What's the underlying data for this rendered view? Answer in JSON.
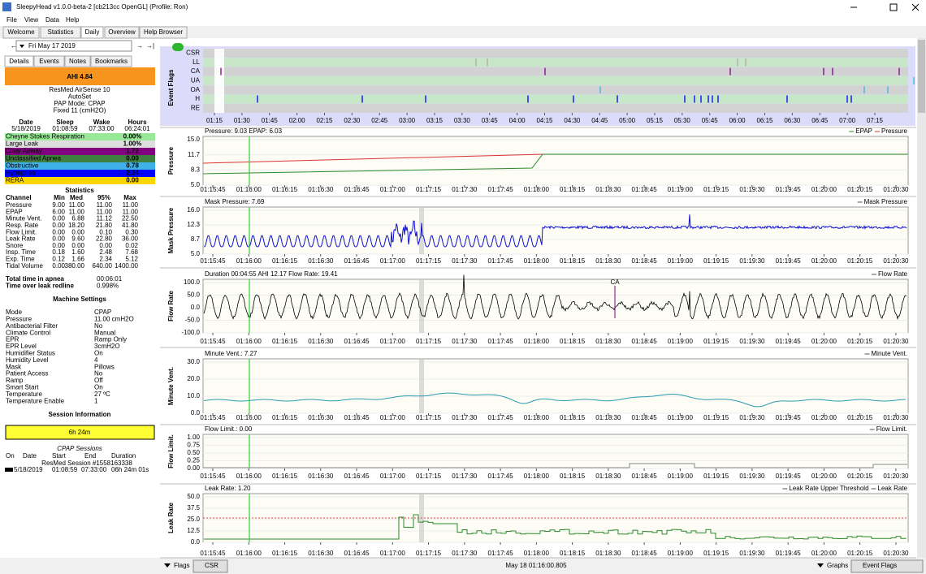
{
  "window": {
    "title": "SleepyHead v1.0.0-beta-2 [cb213cc OpenGL] (Profile: Ron)",
    "menu": [
      "File",
      "View",
      "Data",
      "Help"
    ]
  },
  "tabs": [
    "Welcome",
    "Statistics",
    "Daily",
    "Overview",
    "Help Browser"
  ],
  "date": "Fri May 17 2019",
  "subtabs": [
    "Details",
    "Events",
    "Notes",
    "Bookmarks"
  ],
  "ahi": "AHI 4.84",
  "machine": [
    "ResMed AirSense 10",
    "AutoSet",
    "PAP Mode: CPAP",
    "Fixed 11 (cmH2O)"
  ],
  "summary": {
    "header": [
      "Date",
      "Sleep",
      "Wake",
      "Hours"
    ],
    "row": [
      "5/18/2019",
      "01:08:59",
      "07:33:00",
      "06:24:01"
    ]
  },
  "indices": [
    {
      "name": "Cheyne Stokes Respiration",
      "value": "0.00%",
      "color": "#98e898"
    },
    {
      "name": "Large Leak",
      "value": "1.00%",
      "color": "#dedede"
    },
    {
      "name": "Clear Airway",
      "value": "1.72",
      "color": "#800080"
    },
    {
      "name": "Unclassified Apnea",
      "value": "0.00",
      "color": "#3f7f3f"
    },
    {
      "name": "Obstructive",
      "value": "0.78",
      "color": "#40b0e8"
    },
    {
      "name": "Hypopnea",
      "value": "2.34",
      "color": "#0000ff"
    },
    {
      "name": "RERA",
      "value": "0.00",
      "color": "#ffd700"
    }
  ],
  "statistics": {
    "title": "Statistics",
    "header": [
      "Channel",
      "Min",
      "Med",
      "95%",
      "Max"
    ],
    "rows": [
      [
        "Pressure",
        "9.00",
        "11.00",
        "11.00",
        "11.00"
      ],
      [
        "EPAP",
        "6.00",
        "11.00",
        "11.00",
        "11.00"
      ],
      [
        "Minute Vent.",
        "0.00",
        "6.88",
        "11.12",
        "22.50"
      ],
      [
        "Resp. Rate",
        "0.00",
        "18.20",
        "21.80",
        "41.80"
      ],
      [
        "Flow Limit.",
        "0.00",
        "0.00",
        "0.10",
        "0.30"
      ],
      [
        "Leak Rate",
        "0.00",
        "9.60",
        "22.80",
        "36.00"
      ],
      [
        "Snore",
        "0.00",
        "0.00",
        "0.00",
        "0.02"
      ],
      [
        "Insp. Time",
        "0.18",
        "1.60",
        "2.48",
        "7.68"
      ],
      [
        "Exp. Time",
        "0.12",
        "1.66",
        "2.34",
        "5.12"
      ],
      [
        "Tidal Volume",
        "0.00",
        "380.00",
        "640.00",
        "1400.00"
      ]
    ]
  },
  "apnea": [
    [
      "Total time in apnea",
      "00:06:01"
    ],
    [
      "Time over leak redline",
      "0.998%"
    ]
  ],
  "settings": {
    "title": "Machine Settings",
    "rows": [
      [
        "Mode",
        "CPAP"
      ],
      [
        "Pressure",
        "11.00 cmH2O"
      ],
      [
        "Antibacterial Filter",
        "No"
      ],
      [
        "Climate Control",
        "Manual"
      ],
      [
        "EPR",
        "Ramp Only"
      ],
      [
        "EPR Level",
        "3cmH2O"
      ],
      [
        "Humidifier Status",
        "On"
      ],
      [
        "Humidity Level",
        "4"
      ],
      [
        "Mask",
        "Pillows"
      ],
      [
        "Patient Access",
        "No"
      ],
      [
        "Ramp",
        "Off"
      ],
      [
        "Smart Start",
        "On"
      ],
      [
        "Temperature",
        "27 ºC"
      ],
      [
        "Temperature Enable",
        "1"
      ]
    ]
  },
  "session": {
    "title": "Session Information",
    "duration": "6h 24m",
    "subtitle": "CPAP Sessions",
    "header": [
      "On",
      "Date",
      "Start",
      "End",
      "Duration"
    ],
    "name": "ResMed Session #1558163338",
    "row": [
      "5/18/2019",
      "01:08:59",
      "07:33:00",
      "06h 24m 01s"
    ]
  },
  "event_flags": {
    "title": "Event Flags",
    "labels": [
      "CSR",
      "LL",
      "CA",
      "UA",
      "OA",
      "H",
      "RE"
    ],
    "times": [
      "01:15",
      "01:30",
      "01:45",
      "02:00",
      "02:15",
      "02:30",
      "02:45",
      "03:00",
      "03:15",
      "03:30",
      "03:45",
      "04:00",
      "04:15",
      "04:30",
      "04:45",
      "05:00",
      "05:15",
      "05:30",
      "05:45",
      "06:00",
      "06:15",
      "06:30",
      "06:45",
      "07:00",
      "07:15"
    ]
  },
  "graphs": [
    {
      "title": "Pressure",
      "info": "Pressure: 9.03 EPAP: 6.03",
      "legend": [
        "EPAP",
        "Pressure"
      ],
      "yticks": [
        "5.0",
        "8.3",
        "11.7",
        "15.0"
      ]
    },
    {
      "title": "Mask Pressure",
      "info": "Mask Pressure: 7.69",
      "legend": [
        "Mask Pressure"
      ],
      "yticks": [
        "5.0",
        "8.7",
        "12.3",
        "16.0"
      ]
    },
    {
      "title": "Flow Rate",
      "info": "Duration 00:04:55 AHI 12.17 Flow Rate: 19.41",
      "legend": [
        "Flow Rate"
      ],
      "yticks": [
        "-100.0",
        "-50.0",
        "0.0",
        "50.0",
        "100.0"
      ],
      "annotation": "CA"
    },
    {
      "title": "Minute Vent.",
      "info": "Minute Vent.: 7.27",
      "legend": [
        "Minute Vent."
      ],
      "yticks": [
        "0.0",
        "10.0",
        "20.0",
        "30.0"
      ]
    },
    {
      "title": "Flow Limit.",
      "info": "Flow Limit.: 0.00",
      "legend": [
        "Flow Limit."
      ],
      "yticks": [
        "0.00",
        "0.25",
        "0.50",
        "0.75",
        "1.00"
      ]
    },
    {
      "title": "Leak Rate",
      "info": "Leak Rate: 1.20",
      "legend": [
        "Leak Rate Upper Threshold",
        "Leak Rate"
      ],
      "yticks": [
        "0.0",
        "12.5",
        "25.0",
        "37.5",
        "50.0"
      ]
    }
  ],
  "times": [
    "01:15:45",
    "01:16:00",
    "01:16:15",
    "01:16:30",
    "01:16:45",
    "01:17:00",
    "01:17:15",
    "01:17:30",
    "01:17:45",
    "01:18:00",
    "01:18:15",
    "01:18:30",
    "01:18:45",
    "01:19:00",
    "01:19:15",
    "01:19:30",
    "01:19:45",
    "01:20:00",
    "01:20:15",
    "01:20:30"
  ],
  "footer": {
    "flags": "Flags",
    "csr": "CSR",
    "time": "May 18 01:16:00.805",
    "graphs": "Graphs",
    "event_flags": "Event Flags"
  }
}
